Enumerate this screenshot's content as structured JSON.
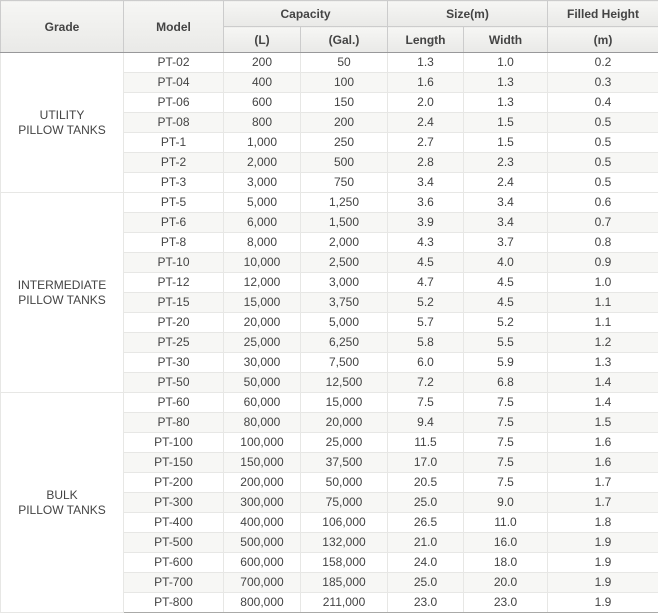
{
  "theme": {
    "header_bg_top": "#f6f6f4",
    "header_bg_bottom": "#e9e9e7",
    "header_text": "#444444",
    "body_text": "#444444",
    "outer_border": "#c8c8c6",
    "header_divider": "#cccccc",
    "header_bottom_border": "#98989a",
    "group_border": "#aaaaa8",
    "row_border": "#e7e7e5",
    "row_bg": "#ffffff",
    "alt_row_bg": "#f7f7f5"
  },
  "table": {
    "headers": {
      "grade": "Grade",
      "model": "Model",
      "capacity": "Capacity",
      "capacity_l": "(L)",
      "capacity_gal": "(Gal.)",
      "size": "Size(m)",
      "size_length": "Length",
      "size_width": "Width",
      "filled_height": "Filled Height",
      "filled_height_unit": "(m)"
    },
    "groups": [
      {
        "grade": "UTILITY\nPILLOW TANKS",
        "rows": [
          {
            "model": "PT-02",
            "capacity_l": "200",
            "capacity_gal": "50",
            "length": "1.3",
            "width": "1.0",
            "filled_height": "0.2"
          },
          {
            "model": "PT-04",
            "capacity_l": "400",
            "capacity_gal": "100",
            "length": "1.6",
            "width": "1.3",
            "filled_height": "0.3"
          },
          {
            "model": "PT-06",
            "capacity_l": "600",
            "capacity_gal": "150",
            "length": "2.0",
            "width": "1.3",
            "filled_height": "0.4"
          },
          {
            "model": "PT-08",
            "capacity_l": "800",
            "capacity_gal": "200",
            "length": "2.4",
            "width": "1.5",
            "filled_height": "0.5"
          },
          {
            "model": "PT-1",
            "capacity_l": "1,000",
            "capacity_gal": "250",
            "length": "2.7",
            "width": "1.5",
            "filled_height": "0.5"
          },
          {
            "model": "PT-2",
            "capacity_l": "2,000",
            "capacity_gal": "500",
            "length": "2.8",
            "width": "2.3",
            "filled_height": "0.5"
          },
          {
            "model": "PT-3",
            "capacity_l": "3,000",
            "capacity_gal": "750",
            "length": "3.4",
            "width": "2.4",
            "filled_height": "0.5"
          }
        ]
      },
      {
        "grade": "INTERMEDIATE\nPILLOW TANKS",
        "rows": [
          {
            "model": "PT-5",
            "capacity_l": "5,000",
            "capacity_gal": "1,250",
            "length": "3.6",
            "width": "3.4",
            "filled_height": "0.6"
          },
          {
            "model": "PT-6",
            "capacity_l": "6,000",
            "capacity_gal": "1,500",
            "length": "3.9",
            "width": "3.4",
            "filled_height": "0.7"
          },
          {
            "model": "PT-8",
            "capacity_l": "8,000",
            "capacity_gal": "2,000",
            "length": "4.3",
            "width": "3.7",
            "filled_height": "0.8"
          },
          {
            "model": "PT-10",
            "capacity_l": "10,000",
            "capacity_gal": "2,500",
            "length": "4.5",
            "width": "4.0",
            "filled_height": "0.9"
          },
          {
            "model": "PT-12",
            "capacity_l": "12,000",
            "capacity_gal": "3,000",
            "length": "4.7",
            "width": "4.5",
            "filled_height": "1.0"
          },
          {
            "model": "PT-15",
            "capacity_l": "15,000",
            "capacity_gal": "3,750",
            "length": "5.2",
            "width": "4.5",
            "filled_height": "1.1"
          },
          {
            "model": "PT-20",
            "capacity_l": "20,000",
            "capacity_gal": "5,000",
            "length": "5.7",
            "width": "5.2",
            "filled_height": "1.1"
          },
          {
            "model": "PT-25",
            "capacity_l": "25,000",
            "capacity_gal": "6,250",
            "length": "5.8",
            "width": "5.5",
            "filled_height": "1.2"
          },
          {
            "model": "PT-30",
            "capacity_l": "30,000",
            "capacity_gal": "7,500",
            "length": "6.0",
            "width": "5.9",
            "filled_height": "1.3"
          },
          {
            "model": "PT-50",
            "capacity_l": "50,000",
            "capacity_gal": "12,500",
            "length": "7.2",
            "width": "6.8",
            "filled_height": "1.4"
          }
        ]
      },
      {
        "grade": "BULK\nPILLOW TANKS",
        "rows": [
          {
            "model": "PT-60",
            "capacity_l": "60,000",
            "capacity_gal": "15,000",
            "length": "7.5",
            "width": "7.5",
            "filled_height": "1.4"
          },
          {
            "model": "PT-80",
            "capacity_l": "80,000",
            "capacity_gal": "20,000",
            "length": "9.4",
            "width": "7.5",
            "filled_height": "1.5"
          },
          {
            "model": "PT-100",
            "capacity_l": "100,000",
            "capacity_gal": "25,000",
            "length": "11.5",
            "width": "7.5",
            "filled_height": "1.6"
          },
          {
            "model": "PT-150",
            "capacity_l": "150,000",
            "capacity_gal": "37,500",
            "length": "17.0",
            "width": "7.5",
            "filled_height": "1.6"
          },
          {
            "model": "PT-200",
            "capacity_l": "200,000",
            "capacity_gal": "50,000",
            "length": "20.5",
            "width": "7.5",
            "filled_height": "1.7"
          },
          {
            "model": "PT-300",
            "capacity_l": "300,000",
            "capacity_gal": "75,000",
            "length": "25.0",
            "width": "9.0",
            "filled_height": "1.7"
          },
          {
            "model": "PT-400",
            "capacity_l": "400,000",
            "capacity_gal": "106,000",
            "length": "26.5",
            "width": "11.0",
            "filled_height": "1.8"
          },
          {
            "model": "PT-500",
            "capacity_l": "500,000",
            "capacity_gal": "132,000",
            "length": "21.0",
            "width": "16.0",
            "filled_height": "1.9"
          },
          {
            "model": "PT-600",
            "capacity_l": "600,000",
            "capacity_gal": "158,000",
            "length": "24.0",
            "width": "18.0",
            "filled_height": "1.9"
          },
          {
            "model": "PT-700",
            "capacity_l": "700,000",
            "capacity_gal": "185,000",
            "length": "25.0",
            "width": "20.0",
            "filled_height": "1.9"
          },
          {
            "model": "PT-800",
            "capacity_l": "800,000",
            "capacity_gal": "211,000",
            "length": "23.0",
            "width": "23.0",
            "filled_height": "1.9"
          }
        ]
      }
    ]
  }
}
